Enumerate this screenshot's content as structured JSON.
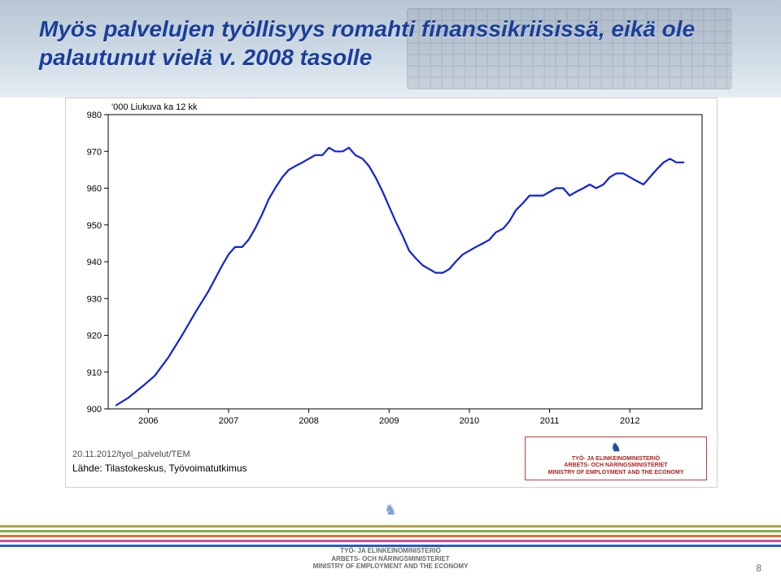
{
  "title": "Myös palvelujen työllisyys romahti finanssikriisissä, eikä ole palautunut vielä v. 2008 tasolle",
  "page_number": "8",
  "chart": {
    "type": "line",
    "y_axis_title": "'000 Liukuva ka 12 kk",
    "ylim": [
      900,
      980
    ],
    "ytick_step": 10,
    "yticks": [
      900,
      910,
      920,
      930,
      940,
      950,
      960,
      970,
      980
    ],
    "xlim": [
      2005.5,
      2012.9
    ],
    "xticks": [
      2006,
      2007,
      2008,
      2009,
      2010,
      2011,
      2012
    ],
    "background_color": "#ffffff",
    "border_color": "#000000",
    "grid": false,
    "line_color": "#1020e0",
    "line_width": 2.2,
    "series": [
      {
        "x": 2005.6,
        "y": 901
      },
      {
        "x": 2005.75,
        "y": 903
      },
      {
        "x": 2005.92,
        "y": 906
      },
      {
        "x": 2006.08,
        "y": 909
      },
      {
        "x": 2006.25,
        "y": 914
      },
      {
        "x": 2006.42,
        "y": 920
      },
      {
        "x": 2006.58,
        "y": 926
      },
      {
        "x": 2006.75,
        "y": 932
      },
      {
        "x": 2006.92,
        "y": 939
      },
      {
        "x": 2007.0,
        "y": 942
      },
      {
        "x": 2007.08,
        "y": 944
      },
      {
        "x": 2007.17,
        "y": 944
      },
      {
        "x": 2007.25,
        "y": 946
      },
      {
        "x": 2007.33,
        "y": 949
      },
      {
        "x": 2007.42,
        "y": 953
      },
      {
        "x": 2007.5,
        "y": 957
      },
      {
        "x": 2007.58,
        "y": 960
      },
      {
        "x": 2007.67,
        "y": 963
      },
      {
        "x": 2007.75,
        "y": 965
      },
      {
        "x": 2007.83,
        "y": 966
      },
      {
        "x": 2007.92,
        "y": 967
      },
      {
        "x": 2008.0,
        "y": 968
      },
      {
        "x": 2008.08,
        "y": 969
      },
      {
        "x": 2008.17,
        "y": 969
      },
      {
        "x": 2008.25,
        "y": 971
      },
      {
        "x": 2008.33,
        "y": 970
      },
      {
        "x": 2008.42,
        "y": 970
      },
      {
        "x": 2008.5,
        "y": 971
      },
      {
        "x": 2008.58,
        "y": 969
      },
      {
        "x": 2008.67,
        "y": 968
      },
      {
        "x": 2008.75,
        "y": 966
      },
      {
        "x": 2008.83,
        "y": 963
      },
      {
        "x": 2008.92,
        "y": 959
      },
      {
        "x": 2009.0,
        "y": 955
      },
      {
        "x": 2009.08,
        "y": 951
      },
      {
        "x": 2009.17,
        "y": 947
      },
      {
        "x": 2009.25,
        "y": 943
      },
      {
        "x": 2009.33,
        "y": 941
      },
      {
        "x": 2009.42,
        "y": 939
      },
      {
        "x": 2009.5,
        "y": 938
      },
      {
        "x": 2009.58,
        "y": 937
      },
      {
        "x": 2009.67,
        "y": 937
      },
      {
        "x": 2009.75,
        "y": 938
      },
      {
        "x": 2009.83,
        "y": 940
      },
      {
        "x": 2009.92,
        "y": 942
      },
      {
        "x": 2010.0,
        "y": 943
      },
      {
        "x": 2010.08,
        "y": 944
      },
      {
        "x": 2010.17,
        "y": 945
      },
      {
        "x": 2010.25,
        "y": 946
      },
      {
        "x": 2010.33,
        "y": 948
      },
      {
        "x": 2010.42,
        "y": 949
      },
      {
        "x": 2010.5,
        "y": 951
      },
      {
        "x": 2010.58,
        "y": 954
      },
      {
        "x": 2010.67,
        "y": 956
      },
      {
        "x": 2010.75,
        "y": 958
      },
      {
        "x": 2010.83,
        "y": 958
      },
      {
        "x": 2010.92,
        "y": 958
      },
      {
        "x": 2011.0,
        "y": 959
      },
      {
        "x": 2011.08,
        "y": 960
      },
      {
        "x": 2011.17,
        "y": 960
      },
      {
        "x": 2011.25,
        "y": 958
      },
      {
        "x": 2011.33,
        "y": 959
      },
      {
        "x": 2011.42,
        "y": 960
      },
      {
        "x": 2011.5,
        "y": 961
      },
      {
        "x": 2011.58,
        "y": 960
      },
      {
        "x": 2011.67,
        "y": 961
      },
      {
        "x": 2011.75,
        "y": 963
      },
      {
        "x": 2011.83,
        "y": 964
      },
      {
        "x": 2011.92,
        "y": 964
      },
      {
        "x": 2012.0,
        "y": 963
      },
      {
        "x": 2012.08,
        "y": 962
      },
      {
        "x": 2012.17,
        "y": 961
      },
      {
        "x": 2012.25,
        "y": 963
      },
      {
        "x": 2012.33,
        "y": 965
      },
      {
        "x": 2012.42,
        "y": 967
      },
      {
        "x": 2012.5,
        "y": 968
      },
      {
        "x": 2012.58,
        "y": 967
      },
      {
        "x": 2012.67,
        "y": 967
      }
    ],
    "source_date": "20.11.2012/tyol_palvelut/TEM",
    "source_text": "Lähde: Tilastokeskus, Työvoimatutkimus"
  },
  "ministry_logo": {
    "line1": "TYÖ- JA ELINKEINOMINISTERIÖ",
    "line2": "ARBETS- OCH NÄRINGSMINISTERIET",
    "line3": "MINISTRY OF EMPLOYMENT AND THE ECONOMY"
  },
  "footer": {
    "stripe_colors": [
      "#b9a14a",
      "#7bb04a",
      "#e07030",
      "#c850a0",
      "#2060c0"
    ],
    "text_line1": "TYÖ- JA ELINKEINOMINISTERIÖ",
    "text_line2": "ARBETS- OCH NÄRINGSMINISTERIET",
    "text_line3": "MINISTRY OF EMPLOYMENT AND THE ECONOMY"
  }
}
